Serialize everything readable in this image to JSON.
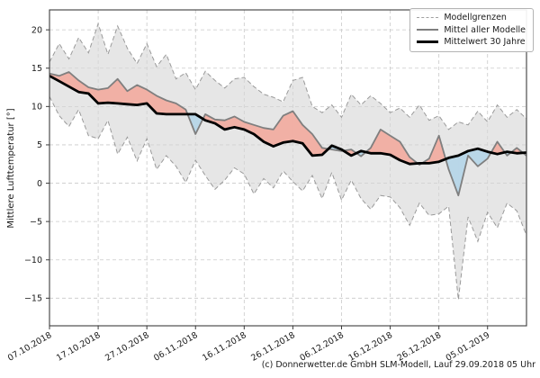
{
  "figure": {
    "footer": "(c) Donnerwetter.de GmbH SLM-Modell, Lauf 29.09.2018 05 Uhr"
  },
  "legend": {
    "items": [
      {
        "label": "Modellgrenzen",
        "style": "dashed",
        "color": "#a0a0a0"
      },
      {
        "label": "Mittel aller Modelle",
        "style": "solid",
        "color": "#7f7f7f"
      },
      {
        "label": "Mittelwert 30 Jahre",
        "style": "thick",
        "color": "#000000"
      }
    ]
  },
  "colors": {
    "band_fill": "#d7d7d7",
    "bound_line": "#9a9a9a",
    "model_mean_line": "#7f7f7f",
    "mean30_line": "#000000",
    "warm_fill": "#f1b0a5",
    "cold_fill": "#b9d7e8",
    "grid": "#c9c9c9",
    "axis": "#3c3c3c",
    "tick_text": "#1a1a1a"
  },
  "chart_data": {
    "type": "line",
    "title": "",
    "xlabel": "",
    "ylabel": "Mittlere Lufttemperatur [°]",
    "grid": true,
    "legend_position": "top-right",
    "x_range": [
      0,
      98
    ],
    "ylim": [
      -18.6,
      22.6
    ],
    "y_ticks": [
      20,
      15,
      10,
      5,
      0,
      -5,
      -10,
      -15
    ],
    "y_tick_labels": [
      "20",
      "15",
      "10",
      "5",
      "0",
      "−5",
      "−10",
      "−15"
    ],
    "x_tick_days": [
      0,
      10,
      20,
      30,
      40,
      50,
      60,
      70,
      80,
      90
    ],
    "x_tick_labels": [
      "07.10.2018",
      "17.10.2018",
      "27.10.2018",
      "06.11.2018",
      "16.11.2018",
      "26.11.2018",
      "06.12.2018",
      "16.12.2018",
      "26.12.2018",
      "05.01.2019"
    ],
    "x_days": [
      0,
      2,
      4,
      6,
      8,
      10,
      12,
      14,
      16,
      18,
      20,
      22,
      24,
      26,
      28,
      30,
      32,
      34,
      36,
      38,
      40,
      42,
      44,
      46,
      48,
      50,
      52,
      54,
      56,
      58,
      60,
      62,
      64,
      66,
      68,
      70,
      72,
      74,
      76,
      78,
      80,
      82,
      84,
      86,
      88,
      90,
      92,
      94,
      96,
      98
    ],
    "series": [
      {
        "name": "Modellgrenzen (obere Grenze)",
        "values": [
          15.8,
          18.2,
          16.2,
          19.0,
          17.0,
          20.8,
          16.8,
          20.5,
          17.6,
          15.6,
          18.2,
          15.2,
          16.8,
          13.6,
          14.4,
          12.2,
          14.6,
          13.4,
          12.4,
          13.6,
          13.8,
          12.6,
          11.6,
          11.2,
          10.6,
          13.4,
          13.8,
          10.0,
          9.2,
          10.2,
          8.6,
          11.6,
          10.2,
          11.4,
          10.4,
          9.2,
          9.8,
          8.6,
          10.2,
          8.2,
          8.8,
          7.0,
          8.0,
          7.6,
          9.4,
          8.0,
          10.2,
          8.6,
          9.6,
          8.4
        ]
      },
      {
        "name": "Modellgrenzen (untere Grenze)",
        "values": [
          11.3,
          8.8,
          7.4,
          9.6,
          6.2,
          5.8,
          8.2,
          3.8,
          6.0,
          2.9,
          5.8,
          1.8,
          3.6,
          2.2,
          0.1,
          3.0,
          1.0,
          -0.8,
          0.4,
          2.0,
          1.2,
          -1.4,
          0.6,
          -0.6,
          1.6,
          0.2,
          -1.0,
          1.0,
          -2.0,
          1.4,
          -2.2,
          0.4,
          -2.0,
          -3.4,
          -1.6,
          -1.8,
          -3.2,
          -5.5,
          -2.6,
          -4.2,
          -4.0,
          -3.0,
          -15.2,
          -4.4,
          -7.6,
          -3.8,
          -5.8,
          -2.6,
          -3.6,
          -6.8
        ]
      },
      {
        "name": "Mittel aller Modelle",
        "values": [
          14.3,
          14.0,
          14.5,
          13.4,
          12.5,
          12.2,
          12.4,
          13.6,
          12.0,
          12.8,
          12.2,
          11.4,
          10.8,
          10.4,
          9.6,
          6.4,
          9.0,
          8.3,
          8.2,
          8.7,
          8.0,
          7.6,
          7.2,
          7.0,
          8.8,
          9.4,
          7.6,
          6.4,
          4.6,
          4.4,
          4.2,
          4.4,
          3.5,
          4.6,
          7.0,
          6.2,
          5.4,
          3.4,
          2.4,
          3.2,
          6.2,
          1.8,
          -1.6,
          3.6,
          2.2,
          3.2,
          5.4,
          3.6,
          4.6,
          3.6
        ]
      },
      {
        "name": "Mittelwert 30 Jahre",
        "values": [
          14.0,
          13.3,
          12.6,
          11.9,
          11.7,
          10.4,
          10.5,
          10.4,
          10.3,
          10.2,
          10.4,
          9.1,
          9.0,
          9.0,
          9.0,
          9.0,
          8.2,
          7.8,
          7.0,
          7.3,
          7.0,
          6.4,
          5.4,
          4.8,
          5.3,
          5.5,
          5.2,
          3.6,
          3.7,
          4.9,
          4.4,
          3.6,
          4.2,
          3.9,
          3.9,
          3.7,
          3.0,
          2.5,
          2.6,
          2.6,
          2.8,
          3.3,
          3.6,
          4.2,
          4.5,
          4.1,
          3.8,
          4.1,
          3.9,
          4.0
        ]
      }
    ]
  }
}
